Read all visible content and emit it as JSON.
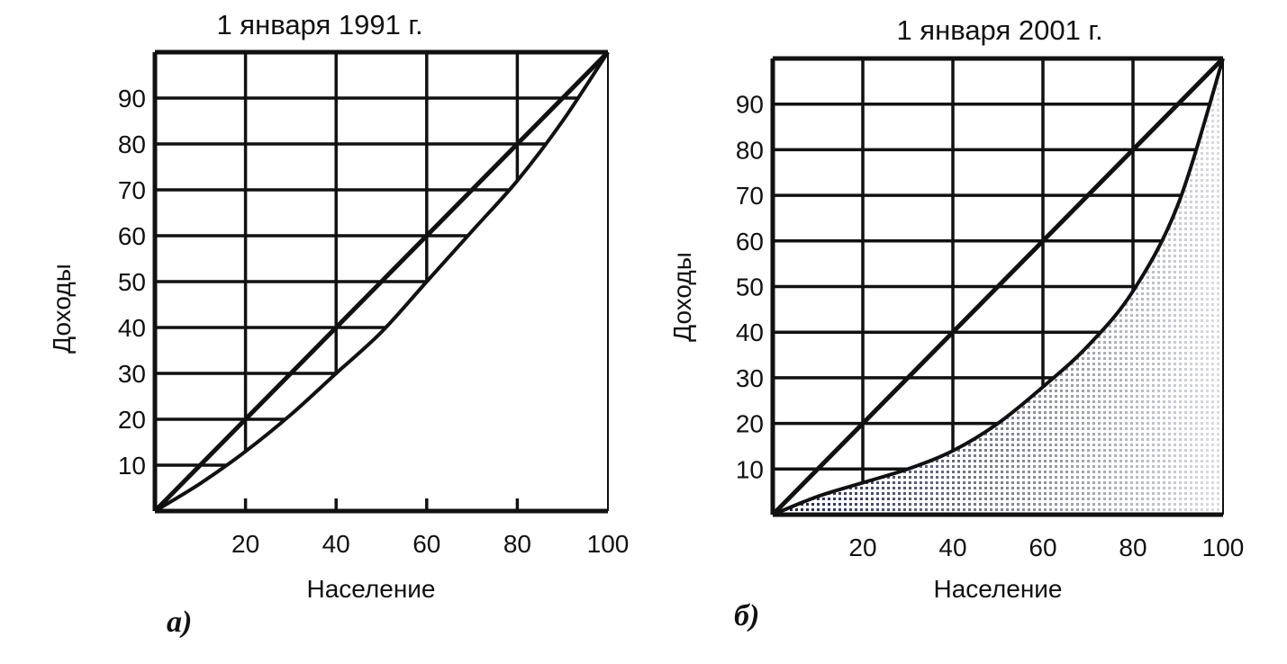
{
  "chart_data": [
    {
      "type": "line",
      "panel_label": "а)",
      "title": "1 января 1991 г.",
      "xlabel": "Население",
      "ylabel": "Доходы",
      "xlim": [
        0,
        100
      ],
      "ylim": [
        0,
        100
      ],
      "x_ticks": [
        "20",
        "40",
        "60",
        "80",
        "100"
      ],
      "y_ticks": [
        "10",
        "20",
        "30",
        "40",
        "50",
        "60",
        "70",
        "80",
        "90"
      ],
      "grid": true,
      "series": [
        {
          "role": "equality-line",
          "points": [
            [
              0,
              0
            ],
            [
              100,
              100
            ]
          ]
        },
        {
          "role": "lorenz-curve",
          "shaded": false,
          "points": [
            [
              0,
              0
            ],
            [
              10,
              6
            ],
            [
              20,
              13
            ],
            [
              30,
              21
            ],
            [
              40,
              30
            ],
            [
              50,
              39
            ],
            [
              60,
              50
            ],
            [
              70,
              61
            ],
            [
              80,
              72
            ],
            [
              90,
              85
            ],
            [
              100,
              100
            ]
          ]
        }
      ]
    },
    {
      "type": "area",
      "panel_label": "б)",
      "title": "1 января  2001 г.",
      "xlabel": "Население",
      "ylabel": "Доходы",
      "xlim": [
        0,
        100
      ],
      "ylim": [
        0,
        100
      ],
      "x_ticks": [
        "20",
        "40",
        "60",
        "80",
        "100"
      ],
      "y_ticks": [
        "10",
        "20",
        "30",
        "40",
        "50",
        "60",
        "70",
        "80",
        "90"
      ],
      "grid": true,
      "series": [
        {
          "role": "equality-line",
          "points": [
            [
              0,
              0
            ],
            [
              100,
              100
            ]
          ]
        },
        {
          "role": "lorenz-curve",
          "shaded": true,
          "points": [
            [
              0,
              0
            ],
            [
              10,
              4
            ],
            [
              20,
              7
            ],
            [
              30,
              10
            ],
            [
              40,
              14
            ],
            [
              50,
              20
            ],
            [
              60,
              28
            ],
            [
              70,
              37
            ],
            [
              80,
              49
            ],
            [
              90,
              68
            ],
            [
              100,
              100
            ]
          ]
        }
      ]
    }
  ],
  "colors": {
    "ink": "#111111",
    "shade": "#1a1f4a",
    "background": "#ffffff"
  }
}
